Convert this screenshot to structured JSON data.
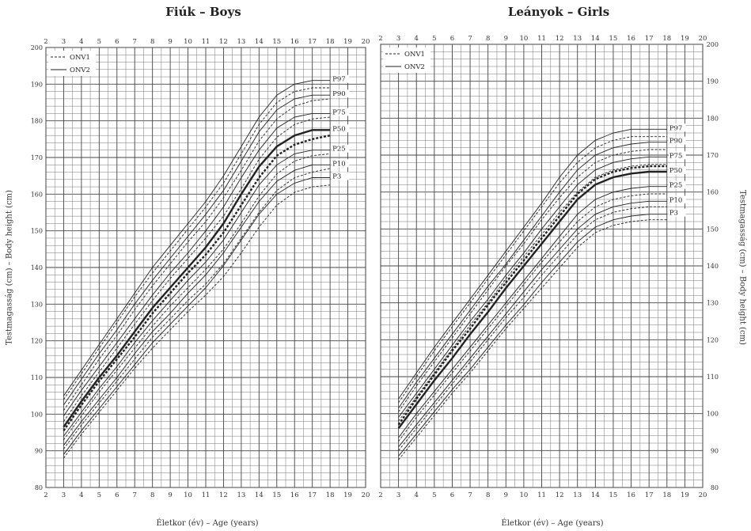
{
  "chart_data": [
    {
      "type": "line",
      "title": "Fiúk – Boys",
      "xlabel": "Életkor (év) – Age (years)",
      "ylabel": "Testmagasság (cm) – Body height (cm)",
      "xlim": [
        2,
        20
      ],
      "ylim": [
        80,
        200
      ],
      "x_ticks": [
        2,
        3,
        4,
        5,
        6,
        7,
        8,
        9,
        10,
        11,
        12,
        13,
        14,
        15,
        16,
        17,
        18,
        19,
        20
      ],
      "y_ticks": [
        80,
        90,
        100,
        110,
        120,
        130,
        140,
        150,
        160,
        170,
        180,
        190,
        200
      ],
      "grid": true,
      "legend": {
        "position": "top-left",
        "entries": [
          "ONV1",
          "ONV2"
        ]
      },
      "x": [
        3,
        4,
        5,
        6,
        7,
        8,
        9,
        10,
        11,
        12,
        13,
        14,
        15,
        16,
        17,
        18
      ],
      "series": [
        {
          "name": "P97",
          "reference": "ONV2",
          "values": [
            105,
            112,
            119,
            126,
            133,
            140,
            146,
            152,
            158,
            165,
            173,
            181,
            187,
            190,
            191,
            191
          ]
        },
        {
          "name": "P90",
          "reference": "ONV2",
          "values": [
            102.5,
            109.5,
            116.5,
            123,
            130,
            136.5,
            142.5,
            148.5,
            154.5,
            161,
            169,
            177,
            183,
            186,
            187,
            187
          ]
        },
        {
          "name": "P75",
          "reference": "ONV2",
          "values": [
            99.5,
            106.5,
            113,
            119.5,
            126,
            132.5,
            138.5,
            144,
            150,
            156.5,
            164.5,
            172,
            178,
            181,
            182,
            182
          ]
        },
        {
          "name": "P50",
          "reference": "ONV2",
          "values": [
            96.5,
            103.5,
            110,
            116,
            122.5,
            129,
            134.5,
            140,
            145.5,
            152,
            160,
            167.5,
            173,
            176,
            177.5,
            177.5
          ]
        },
        {
          "name": "P25",
          "reference": "ONV2",
          "values": [
            94,
            100.5,
            107,
            113,
            119.5,
            125.5,
            131,
            136.5,
            141.5,
            147.5,
            155,
            162.5,
            168,
            171,
            172,
            172
          ]
        },
        {
          "name": "P10",
          "reference": "ONV2",
          "values": [
            91.5,
            98,
            104,
            110,
            116.5,
            122.5,
            127.5,
            133,
            138,
            144,
            151,
            158,
            163.5,
            166.5,
            168,
            168
          ]
        },
        {
          "name": "P3",
          "reference": "ONV2",
          "values": [
            89,
            95.5,
            101.5,
            107.5,
            113.5,
            119.5,
            124.5,
            129.5,
            134.5,
            140.5,
            147.5,
            154.5,
            160,
            163,
            164.5,
            164.5
          ]
        },
        {
          "name": "P97",
          "reference": "ONV1",
          "values": [
            104,
            111,
            118,
            125,
            132,
            138.5,
            144.5,
            150.5,
            156.5,
            163,
            171,
            179,
            185,
            188,
            189,
            189
          ]
        },
        {
          "name": "P90",
          "reference": "ONV1",
          "values": [
            101,
            108,
            115,
            121.5,
            128.5,
            135,
            141,
            147,
            152.5,
            159,
            166.5,
            174.5,
            180.5,
            184,
            185.5,
            186
          ]
        },
        {
          "name": "P75",
          "reference": "ONV1",
          "values": [
            98,
            105,
            111.5,
            118,
            124.5,
            131,
            137,
            142.5,
            148,
            154,
            161.5,
            169.5,
            175.5,
            179,
            180.5,
            181
          ]
        },
        {
          "name": "P50",
          "reference": "ONV1",
          "values": [
            95.5,
            102.5,
            109,
            115,
            121,
            127.5,
            133,
            138.5,
            143.5,
            149.5,
            157,
            164.5,
            170.5,
            173.5,
            175,
            176
          ]
        },
        {
          "name": "P25",
          "reference": "ONV1",
          "values": [
            93,
            99.5,
            106,
            112,
            118,
            124,
            129.5,
            134.5,
            139.5,
            145,
            152,
            159.5,
            165.5,
            169,
            170.5,
            171
          ]
        },
        {
          "name": "P10",
          "reference": "ONV1",
          "values": [
            90.5,
            97,
            103,
            109,
            115,
            121,
            126,
            131,
            135.5,
            141,
            148,
            155,
            161,
            164.5,
            166,
            167
          ]
        },
        {
          "name": "P3",
          "reference": "ONV1",
          "values": [
            88,
            94.5,
            100.5,
            106.5,
            112.5,
            118,
            123,
            128,
            132.5,
            137.5,
            144,
            151,
            157,
            160.5,
            162,
            162.5
          ]
        }
      ]
    },
    {
      "type": "line",
      "title": "Leányok – Girls",
      "xlabel": "Életkor (év) – Age (years)",
      "ylabel": "Testmagasság (cm) – Body height (cm)",
      "xlim": [
        2,
        20
      ],
      "ylim": [
        80,
        200
      ],
      "x_ticks": [
        2,
        3,
        4,
        5,
        6,
        7,
        8,
        9,
        10,
        11,
        12,
        13,
        14,
        15,
        16,
        17,
        18,
        19,
        20
      ],
      "y_ticks": [
        80,
        90,
        100,
        110,
        120,
        130,
        140,
        150,
        160,
        170,
        180,
        190,
        200
      ],
      "grid": true,
      "legend": {
        "position": "top-left",
        "entries": [
          "ONV1",
          "ONV2"
        ]
      },
      "x": [
        3,
        4,
        5,
        6,
        7,
        8,
        9,
        10,
        11,
        12,
        13,
        14,
        15,
        16,
        17,
        18
      ],
      "series": [
        {
          "name": "P97",
          "reference": "ONV2",
          "values": [
            104,
            111,
            118,
            124.5,
            131,
            137.5,
            144,
            150.5,
            157,
            164,
            170,
            174,
            176,
            177,
            177,
            177
          ]
        },
        {
          "name": "P90",
          "reference": "ONV2",
          "values": [
            101.5,
            108.5,
            115,
            121.5,
            128,
            134.5,
            140.5,
            147,
            153.5,
            160,
            166,
            170,
            172,
            173,
            173.5,
            173.5
          ]
        },
        {
          "name": "P75",
          "reference": "ONV2",
          "values": [
            99,
            105.5,
            112,
            118.5,
            125,
            131,
            137.5,
            143.5,
            150,
            156,
            162,
            166,
            168,
            169,
            169.5,
            169.5
          ]
        },
        {
          "name": "P50",
          "reference": "ONV2",
          "values": [
            96,
            102.5,
            109,
            115,
            121.5,
            127.5,
            134,
            140,
            146,
            152,
            158,
            162,
            164,
            165,
            165.5,
            165.5
          ]
        },
        {
          "name": "P25",
          "reference": "ONV2",
          "values": [
            93.5,
            100,
            106,
            112,
            118,
            124,
            130,
            136,
            142,
            148,
            154,
            158,
            160,
            161,
            161.5,
            161.5
          ]
        },
        {
          "name": "P10",
          "reference": "ONV2",
          "values": [
            91,
            97,
            103,
            109,
            115,
            121,
            127,
            133,
            139,
            144.5,
            150,
            154,
            156,
            157,
            157.5,
            157.5
          ]
        },
        {
          "name": "P3",
          "reference": "ONV2",
          "values": [
            88.5,
            94.5,
            100.5,
            106.5,
            112,
            118,
            124,
            129.5,
            135.5,
            141,
            146.5,
            150.5,
            152.5,
            153.5,
            154,
            154
          ]
        },
        {
          "name": "P97",
          "reference": "ONV1",
          "values": [
            103,
            110,
            117,
            123.5,
            130,
            136.5,
            143,
            149.5,
            156,
            162.5,
            168,
            172,
            174,
            175,
            175,
            175
          ]
        },
        {
          "name": "P90",
          "reference": "ONV1",
          "values": [
            100.5,
            107.5,
            114,
            120.5,
            127,
            133.5,
            140,
            146,
            152.5,
            158.5,
            164,
            168,
            170,
            171,
            171.5,
            171.5
          ]
        },
        {
          "name": "P75",
          "reference": "ONV1",
          "values": [
            98,
            104.5,
            111,
            117.5,
            124,
            130,
            136.5,
            142.5,
            148.5,
            154.5,
            160,
            164,
            166,
            167,
            167.5,
            167.5
          ]
        },
        {
          "name": "P50",
          "reference": "ONV1",
          "values": [
            97,
            104,
            110.5,
            117,
            123,
            129.5,
            135.5,
            141.5,
            147.5,
            153.5,
            159.5,
            163.5,
            165.5,
            166.5,
            167,
            167
          ]
        },
        {
          "name": "P25",
          "reference": "ONV1",
          "values": [
            92.5,
            99,
            105,
            111,
            117,
            123,
            129,
            135,
            141,
            146.5,
            152,
            156,
            158,
            159,
            159.5,
            159.5
          ]
        },
        {
          "name": "P10",
          "reference": "ONV1",
          "values": [
            90,
            96,
            102,
            108,
            114,
            120,
            126,
            131.5,
            137.5,
            143,
            148.5,
            152.5,
            154.5,
            155.5,
            156,
            156
          ]
        },
        {
          "name": "P3",
          "reference": "ONV1",
          "values": [
            87.5,
            93.5,
            99.5,
            105.5,
            111,
            117,
            123,
            128.5,
            134,
            139.5,
            145,
            149,
            151,
            152,
            152.5,
            152.5
          ]
        }
      ]
    }
  ]
}
